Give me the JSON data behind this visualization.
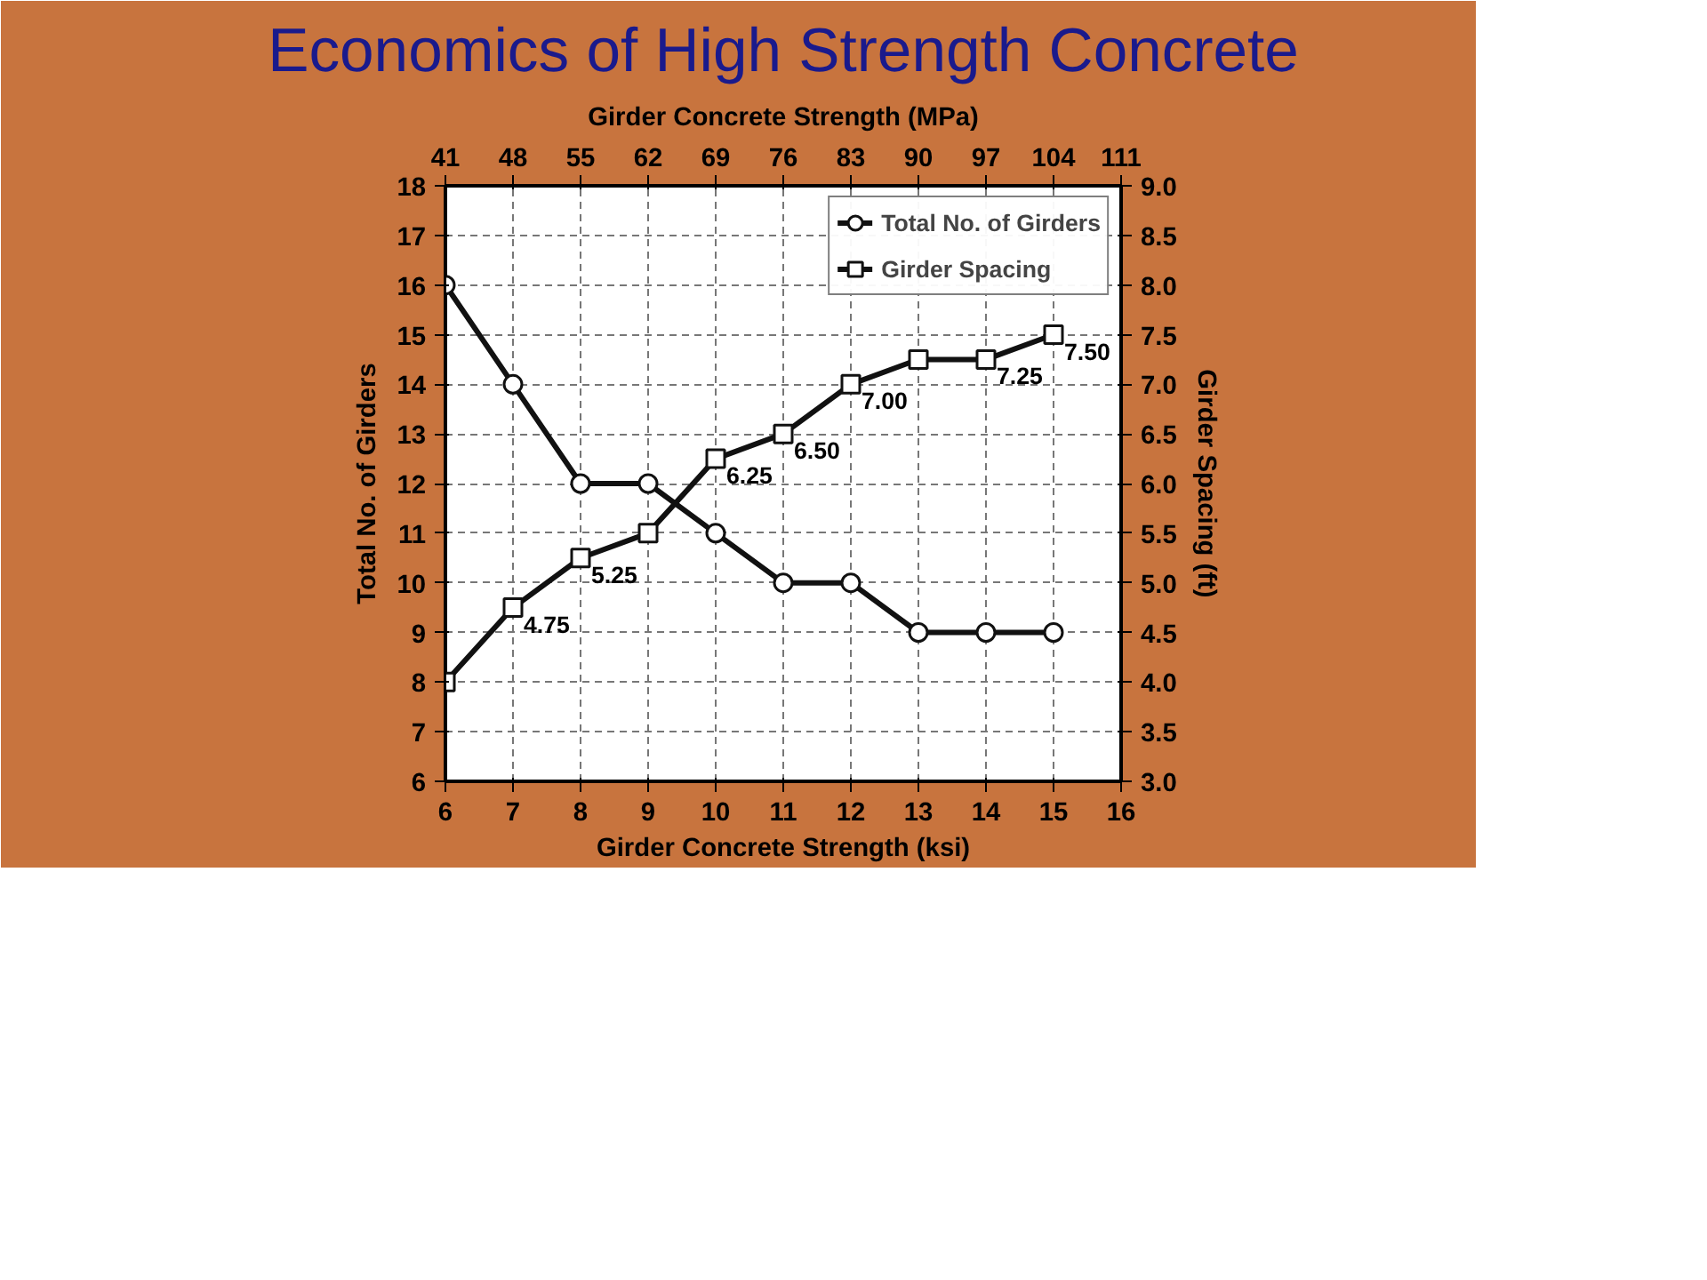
{
  "chart_data": {
    "type": "line",
    "title": "Economics of High Strength Concrete",
    "xlabel": "Girder Concrete Strength (ksi)",
    "x2label": "Girder Concrete Strength (MPa)",
    "ylabel": "Total No. of Girders",
    "y2label": "Girder Spacing (ft)",
    "x": [
      6,
      7,
      8,
      9,
      10,
      11,
      12,
      13,
      14,
      15
    ],
    "xlim": [
      6,
      16
    ],
    "xticks": [
      6,
      7,
      8,
      9,
      10,
      11,
      12,
      13,
      14,
      15,
      16
    ],
    "x2lim": [
      41,
      111
    ],
    "x2ticks": [
      41,
      48,
      55,
      62,
      69,
      76,
      83,
      90,
      97,
      104,
      111
    ],
    "ylim": [
      6,
      18
    ],
    "yticks": [
      6,
      7,
      8,
      9,
      10,
      11,
      12,
      13,
      14,
      15,
      16,
      17,
      18
    ],
    "y2lim": [
      3.0,
      9.0
    ],
    "y2ticks": [
      {
        "value": 3.0,
        "label": "3.0"
      },
      {
        "value": 3.5,
        "label": "3.5"
      },
      {
        "value": 4.0,
        "label": "4.0"
      },
      {
        "value": 4.5,
        "label": "4.5"
      },
      {
        "value": 5.0,
        "label": "5.0"
      },
      {
        "value": 5.5,
        "label": "5.5"
      },
      {
        "value": 6.0,
        "label": "6.0"
      },
      {
        "value": 6.5,
        "label": "6.5"
      },
      {
        "value": 7.0,
        "label": "7.0"
      },
      {
        "value": 7.5,
        "label": "7.5"
      },
      {
        "value": 8.0,
        "label": "8.0"
      },
      {
        "value": 8.5,
        "label": "8.5"
      },
      {
        "value": 9.0,
        "label": "9.0"
      }
    ],
    "series": [
      {
        "name": "Total No. of Girders",
        "color": "#111111",
        "marker": "circle",
        "values": [
          16,
          14,
          12,
          12,
          11,
          10,
          10,
          9,
          9,
          9
        ]
      },
      {
        "name": "Girder Spacing",
        "color": "#111111",
        "marker": "square",
        "axis": "y2",
        "values": [
          4.0,
          4.75,
          5.25,
          5.5,
          6.25,
          6.5,
          7.0,
          7.25,
          7.25,
          7.5
        ],
        "value_labels": [
          null,
          "4.75",
          "5.25",
          null,
          "6.25",
          "6.50",
          "7.00",
          null,
          "7.25",
          "7.50"
        ]
      }
    ],
    "grid": true,
    "legend": "top right"
  }
}
